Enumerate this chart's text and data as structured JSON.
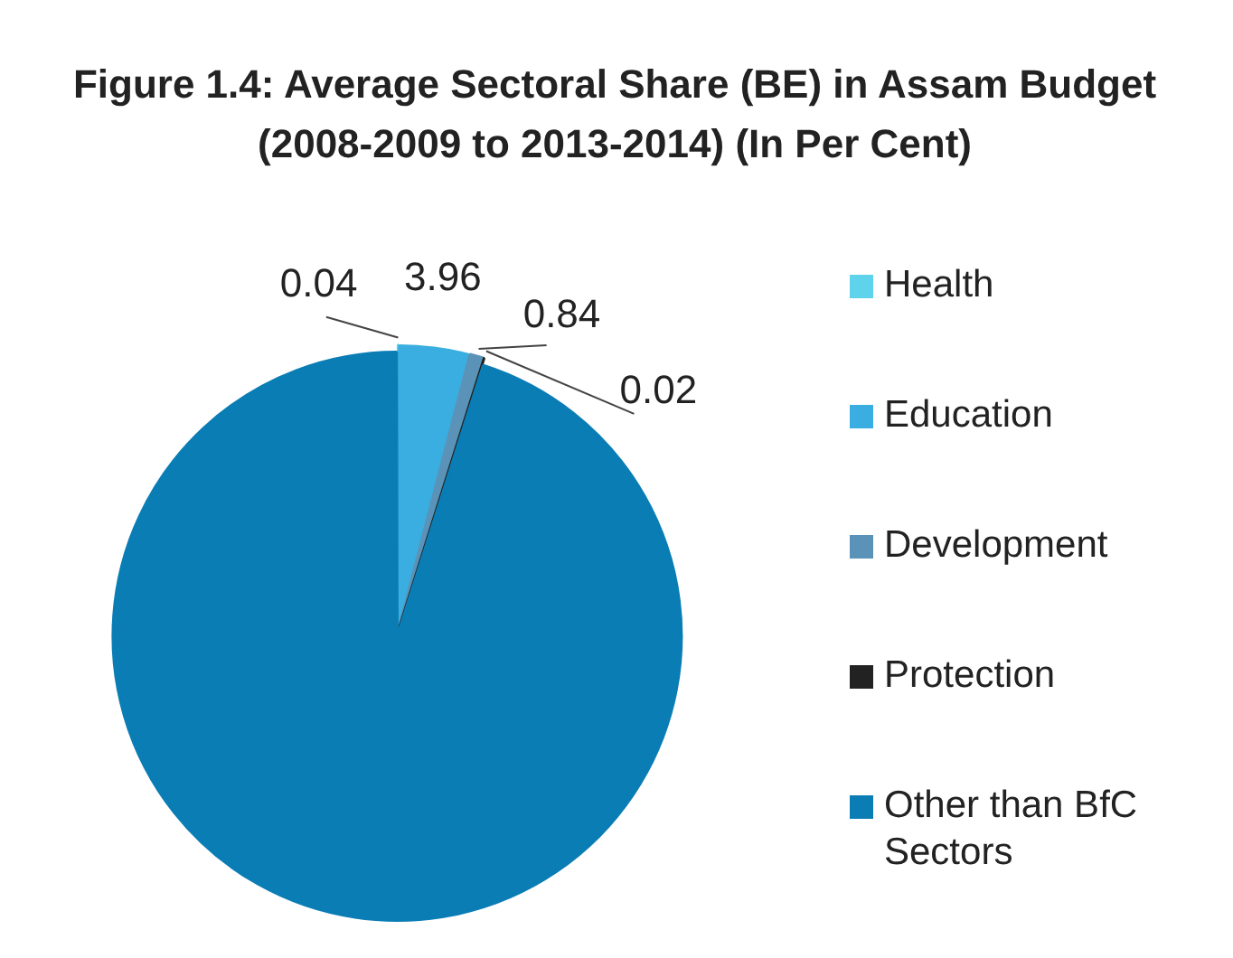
{
  "chart_data": {
    "type": "pie",
    "title": "Figure 1.4: Average Sectoral Share (BE) in Assam Budget (2008-2009 to 2013-2014) (In Per Cent)",
    "categories": [
      "Health",
      "Education",
      "Development",
      "Protection",
      "Other than BfC Sectors"
    ],
    "values": [
      0.04,
      3.96,
      0.84,
      0.02,
      95.14
    ],
    "value_labels": [
      "0.04",
      "3.96",
      "0.84",
      "0.02",
      null
    ],
    "colors": [
      "#5fd3ec",
      "#3aaee0",
      "#5b93b8",
      "#222222",
      "#0a7db5"
    ],
    "legend": "right"
  }
}
